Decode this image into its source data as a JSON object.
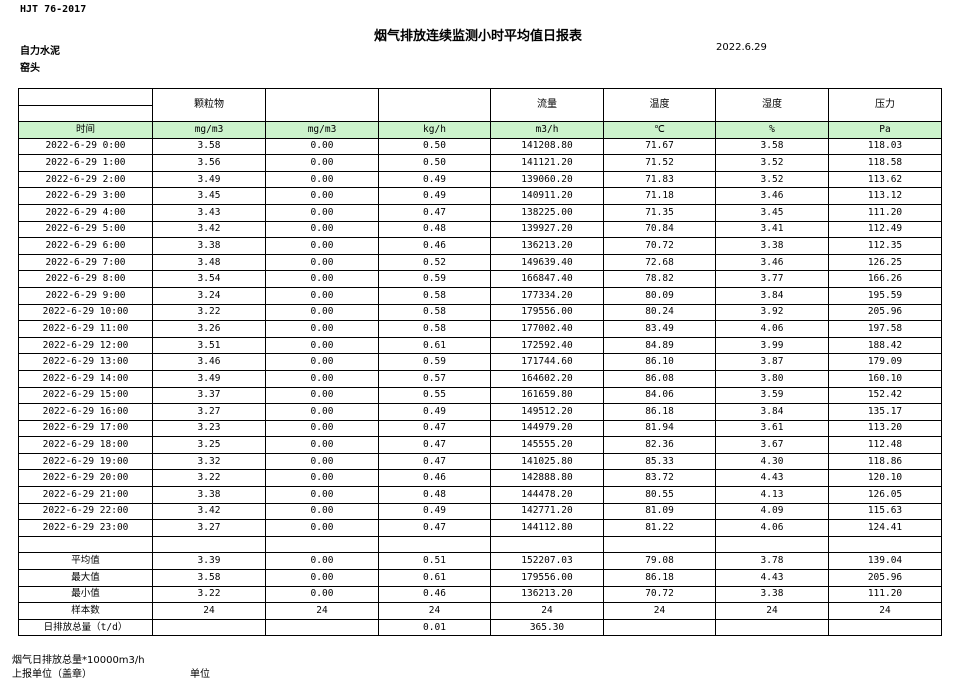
{
  "header": {
    "standard": "HJT  76-2017",
    "title": "烟气排放连续监测小时平均值日报表",
    "company": "自力水泥",
    "date": "2022.6.29",
    "location": "窑头"
  },
  "table": {
    "head": [
      null,
      "颗粒物",
      null,
      null,
      "流量",
      "温度",
      "湿度",
      "压力"
    ],
    "units": [
      "时间",
      "mg/m3",
      "mg/m3",
      "kg/h",
      "m3/h",
      "℃",
      "%",
      "Pa"
    ],
    "rows": [
      [
        "2022-6-29 0:00",
        "3.58",
        "0.00",
        "0.50",
        "141208.80",
        "71.67",
        "3.58",
        "118.03"
      ],
      [
        "2022-6-29 1:00",
        "3.56",
        "0.00",
        "0.50",
        "141121.20",
        "71.52",
        "3.52",
        "118.58"
      ],
      [
        "2022-6-29 2:00",
        "3.49",
        "0.00",
        "0.49",
        "139060.20",
        "71.83",
        "3.52",
        "113.62"
      ],
      [
        "2022-6-29 3:00",
        "3.45",
        "0.00",
        "0.49",
        "140911.20",
        "71.18",
        "3.46",
        "113.12"
      ],
      [
        "2022-6-29 4:00",
        "3.43",
        "0.00",
        "0.47",
        "138225.00",
        "71.35",
        "3.45",
        "111.20"
      ],
      [
        "2022-6-29 5:00",
        "3.42",
        "0.00",
        "0.48",
        "139927.20",
        "70.84",
        "3.41",
        "112.49"
      ],
      [
        "2022-6-29 6:00",
        "3.38",
        "0.00",
        "0.46",
        "136213.20",
        "70.72",
        "3.38",
        "112.35"
      ],
      [
        "2022-6-29 7:00",
        "3.48",
        "0.00",
        "0.52",
        "149639.40",
        "72.68",
        "3.46",
        "126.25"
      ],
      [
        "2022-6-29 8:00",
        "3.54",
        "0.00",
        "0.59",
        "166847.40",
        "78.82",
        "3.77",
        "166.26"
      ],
      [
        "2022-6-29 9:00",
        "3.24",
        "0.00",
        "0.58",
        "177334.20",
        "80.09",
        "3.84",
        "195.59"
      ],
      [
        "2022-6-29 10:00",
        "3.22",
        "0.00",
        "0.58",
        "179556.00",
        "80.24",
        "3.92",
        "205.96"
      ],
      [
        "2022-6-29 11:00",
        "3.26",
        "0.00",
        "0.58",
        "177002.40",
        "83.49",
        "4.06",
        "197.58"
      ],
      [
        "2022-6-29 12:00",
        "3.51",
        "0.00",
        "0.61",
        "172592.40",
        "84.89",
        "3.99",
        "188.42"
      ],
      [
        "2022-6-29 13:00",
        "3.46",
        "0.00",
        "0.59",
        "171744.60",
        "86.10",
        "3.87",
        "179.09"
      ],
      [
        "2022-6-29 14:00",
        "3.49",
        "0.00",
        "0.57",
        "164602.20",
        "86.08",
        "3.80",
        "160.10"
      ],
      [
        "2022-6-29 15:00",
        "3.37",
        "0.00",
        "0.55",
        "161659.80",
        "84.06",
        "3.59",
        "152.42"
      ],
      [
        "2022-6-29 16:00",
        "3.27",
        "0.00",
        "0.49",
        "149512.20",
        "86.18",
        "3.84",
        "135.17"
      ],
      [
        "2022-6-29 17:00",
        "3.23",
        "0.00",
        "0.47",
        "144979.20",
        "81.94",
        "3.61",
        "113.20"
      ],
      [
        "2022-6-29 18:00",
        "3.25",
        "0.00",
        "0.47",
        "145555.20",
        "82.36",
        "3.67",
        "112.48"
      ],
      [
        "2022-6-29 19:00",
        "3.32",
        "0.00",
        "0.47",
        "141025.80",
        "85.33",
        "4.30",
        "118.86"
      ],
      [
        "2022-6-29 20:00",
        "3.22",
        "0.00",
        "0.46",
        "142888.80",
        "83.72",
        "4.43",
        "120.10"
      ],
      [
        "2022-6-29 21:00",
        "3.38",
        "0.00",
        "0.48",
        "144478.20",
        "80.55",
        "4.13",
        "126.05"
      ],
      [
        "2022-6-29 22:00",
        "3.42",
        "0.00",
        "0.49",
        "142771.20",
        "81.09",
        "4.09",
        "115.63"
      ],
      [
        "2022-6-29 23:00",
        "3.27",
        "0.00",
        "0.47",
        "144112.80",
        "81.22",
        "4.06",
        "124.41"
      ]
    ],
    "summary": [
      [
        "平均值",
        "3.39",
        "0.00",
        "0.51",
        "152207.03",
        "79.08",
        "3.78",
        "139.04"
      ],
      [
        "最大值",
        "3.58",
        "0.00",
        "0.61",
        "179556.00",
        "86.18",
        "4.43",
        "205.96"
      ],
      [
        "最小值",
        "3.22",
        "0.00",
        "0.46",
        "136213.20",
        "70.72",
        "3.38",
        "111.20"
      ],
      [
        "样本数",
        "24",
        "24",
        "24",
        "24",
        "24",
        "24",
        "24"
      ],
      [
        "日排放总量（t/d）",
        null,
        null,
        "0.01",
        "365.30",
        null,
        null,
        null
      ]
    ]
  },
  "footer": {
    "note": "烟气日排放总量*10000m3/h",
    "unit_label": "上报单位（盖章）",
    "unit_value": "单位"
  }
}
